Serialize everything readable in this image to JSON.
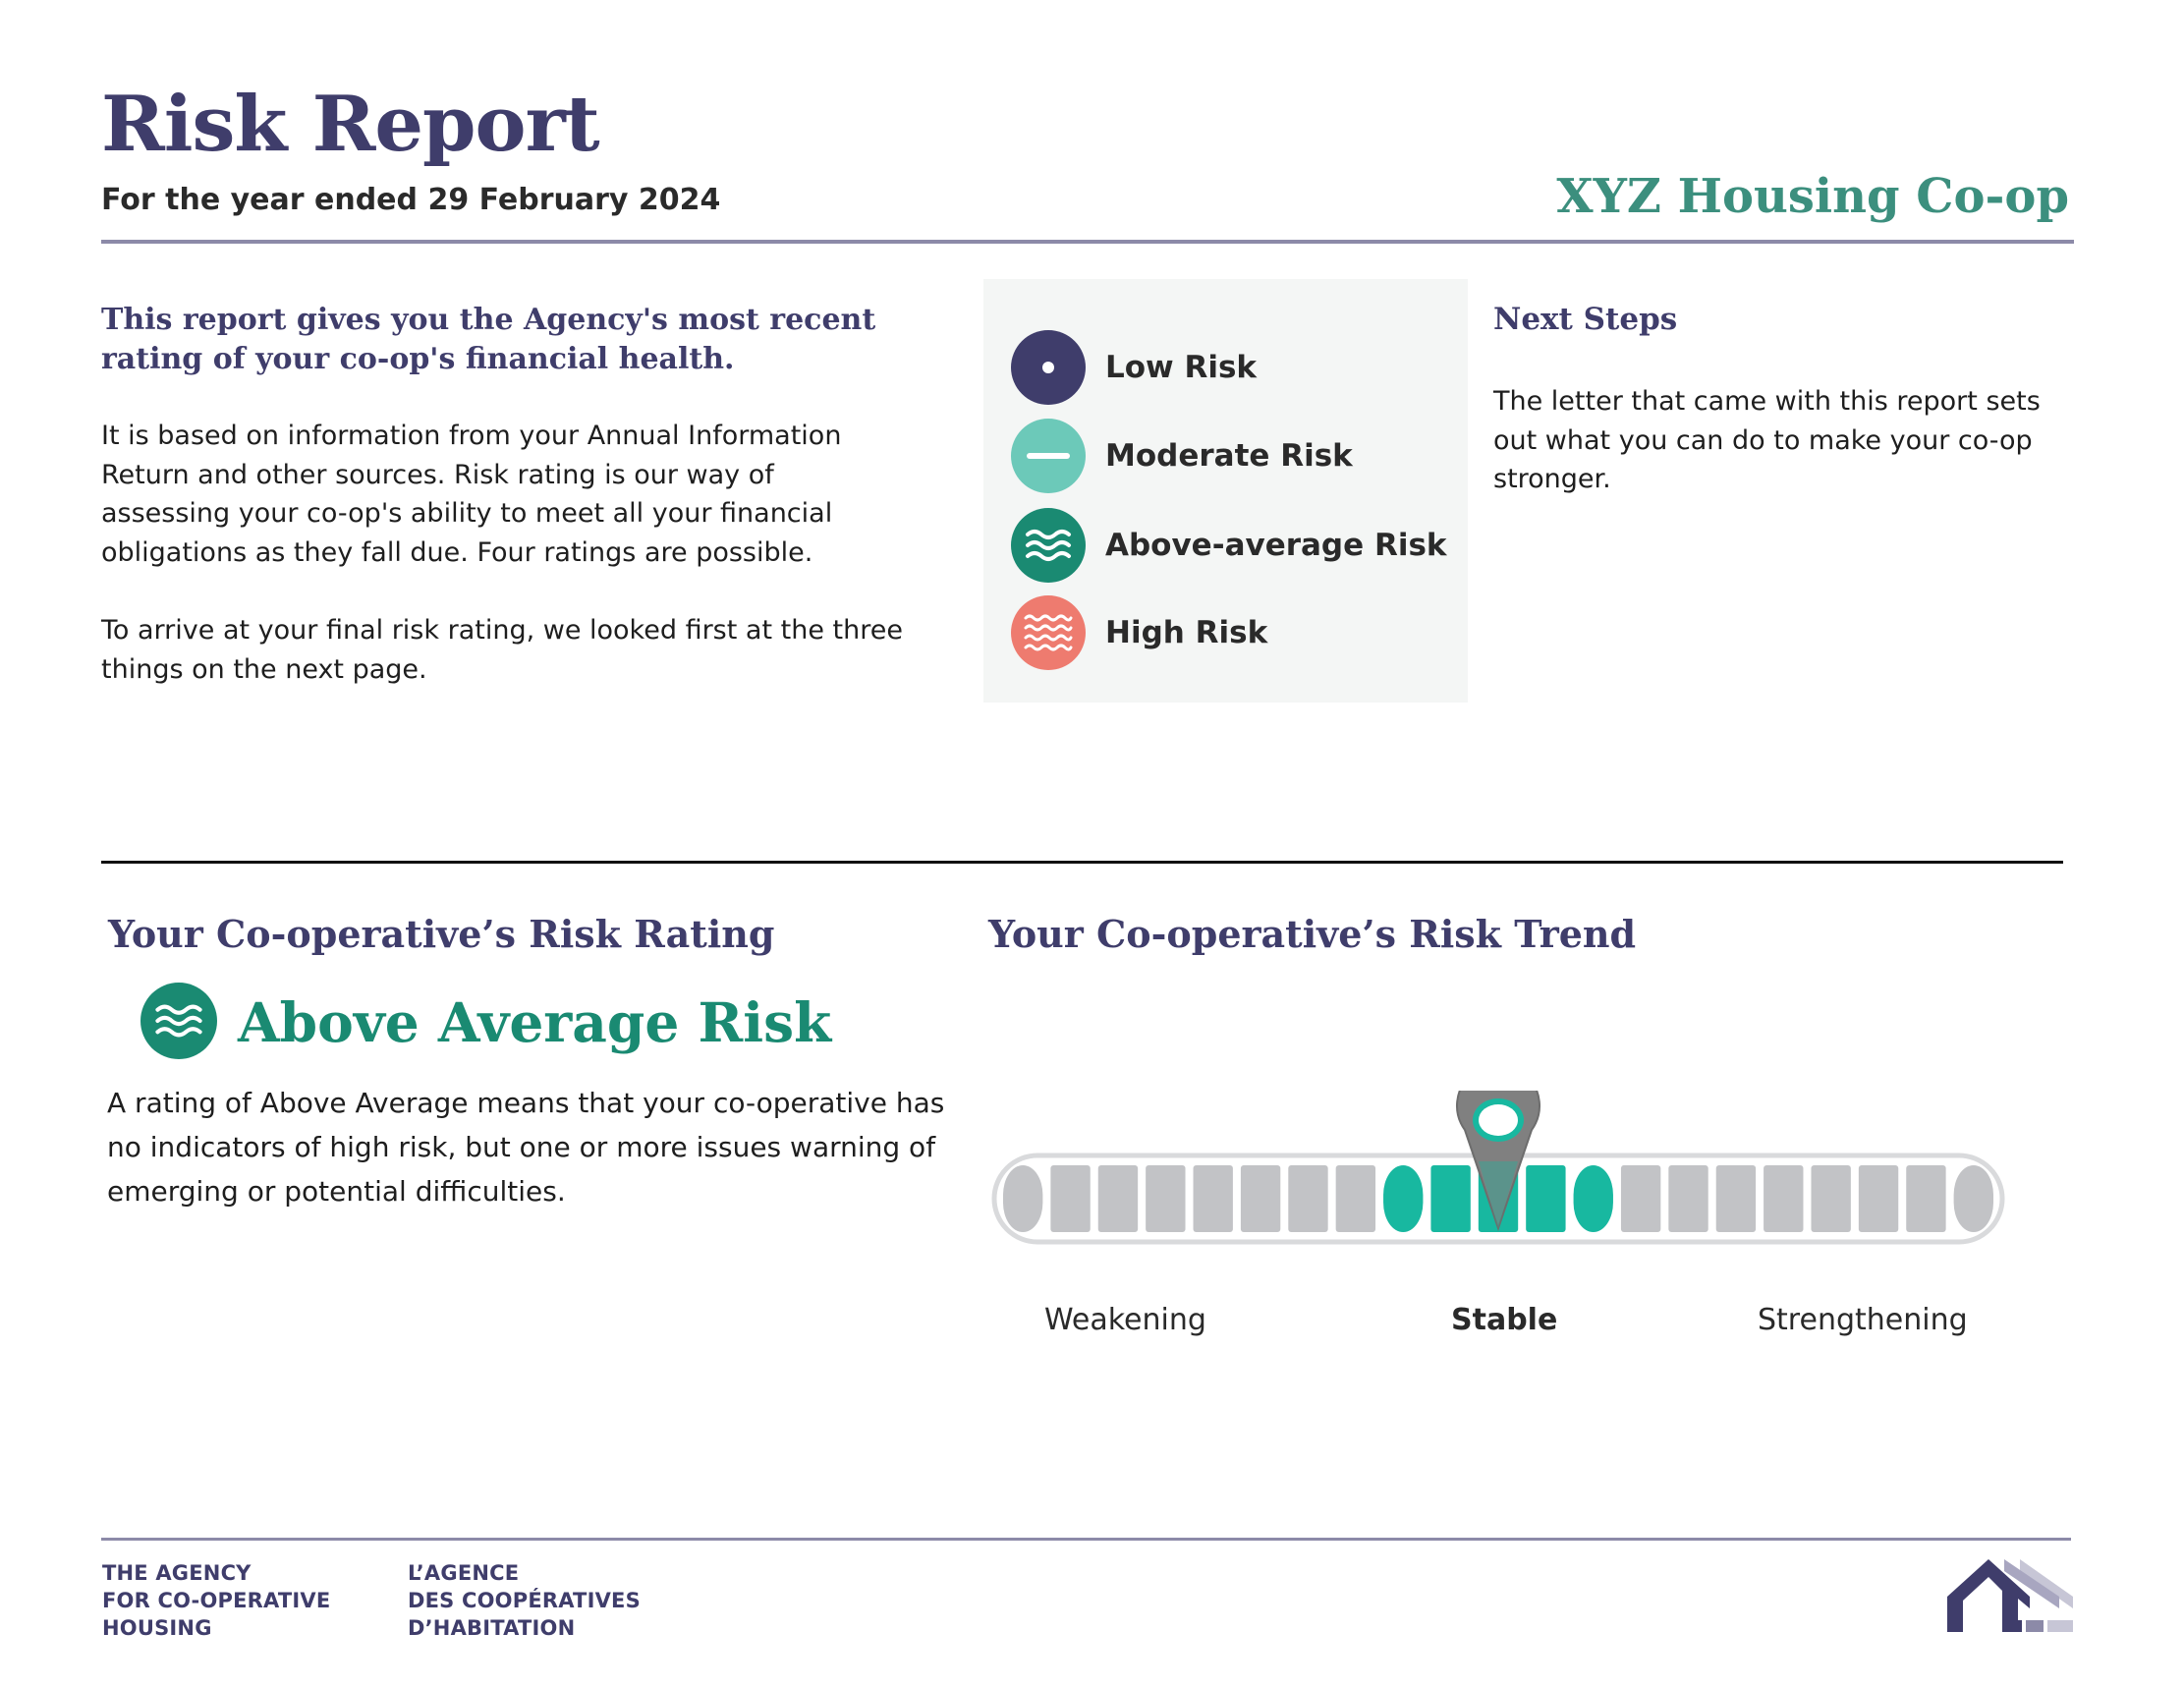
{
  "header": {
    "title": "Risk Report",
    "subtitle": "For the year ended 29 February 2024",
    "coop_name": "XYZ Housing Co-op"
  },
  "intro": {
    "lead": "This report gives you the Agency's most recent rating of your co-op's financial health.",
    "paragraph_1": "It is based on information from your Annual Information Return and other sources. Risk rating is our way of assessing your co-op's ability to meet all your financial obligations as they fall due. Four ratings are possible.",
    "paragraph_2": "To arrive at your final risk rating, we looked first at the three things on the next page."
  },
  "legend": {
    "items": [
      {
        "label": "Low Risk",
        "icon": "dot-circle-icon",
        "color": "#3f3d6b"
      },
      {
        "label": "Moderate Risk",
        "icon": "dash-circle-icon",
        "color": "#6cc9b9"
      },
      {
        "label": "Above-average Risk",
        "icon": "waves-circle-icon",
        "color": "#1a8a72"
      },
      {
        "label": "High Risk",
        "icon": "zigzag-circle-icon",
        "color": "#ee7b6f"
      }
    ]
  },
  "next_steps": {
    "title": "Next Steps",
    "text": "The letter that came with this report sets out what  you can do to make your co-op stronger."
  },
  "rating": {
    "title": "Your Co-operative’s Risk Rating",
    "value": "Above Average Risk",
    "icon": "waves-circle-icon",
    "color": "#1a8a72",
    "description": "A rating of Above Average means that your co-operative has no indicators of high risk, but one or more issues warning of emerging or potential difficulties."
  },
  "trend": {
    "title": "Your Co-operative’s Risk Trend",
    "labels": {
      "weakening": "Weakening",
      "stable": "Stable",
      "strengthening": "Strengthening"
    },
    "current": "Stable",
    "segment_count": 21,
    "highlight_from": 8,
    "highlight_to": 13,
    "pointer_segment": 10.5,
    "colors": {
      "segment": "#c2c3c6",
      "highlight": "#18b8a0",
      "pointer": "#808080"
    }
  },
  "footer": {
    "org_en": [
      "THE AGENCY",
      "FOR CO-OPERATIVE",
      "HOUSING"
    ],
    "org_fr": [
      "L’AGENCE",
      "DES COOPÉRATIVES",
      "D’HABITATION"
    ],
    "logo": "houses-logo-icon"
  }
}
